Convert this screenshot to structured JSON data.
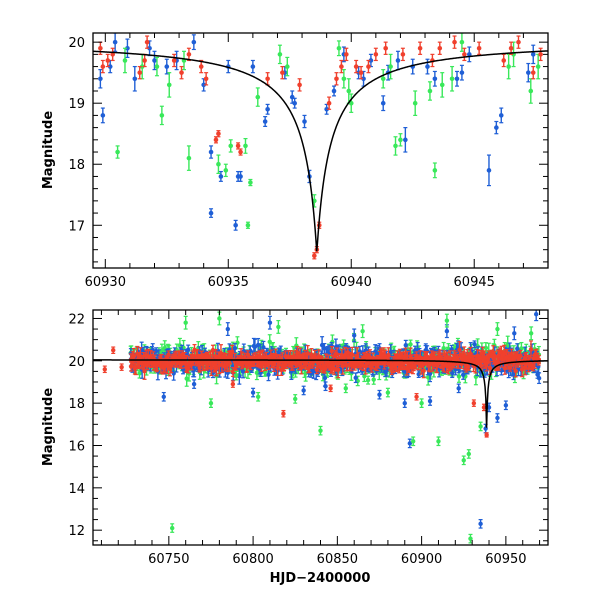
{
  "colors": {
    "blue": "#1f5fd6",
    "green": "#39e85a",
    "red": "#f0402d",
    "model": "#000000"
  },
  "chart_data": [
    {
      "type": "scatter",
      "ylabel": "Magnitude",
      "xlabel": "",
      "xlim": [
        60929.5,
        60948
      ],
      "ylim": [
        20.15,
        16.3
      ],
      "xticks": [
        60930,
        60935,
        60940,
        60945
      ],
      "xtick_labels": [
        "60930",
        "60935",
        "60940",
        "60945"
      ],
      "yticks": [
        17,
        18,
        19,
        20
      ],
      "ytick_labels": [
        "17",
        "18",
        "19",
        "20"
      ],
      "model": {
        "name": "model curve",
        "t0": 60938.6,
        "peak": 16.55,
        "base": 20.05,
        "depth": 3.5,
        "tau": 0.55
      },
      "series": [
        {
          "name": "blue",
          "color": "blue",
          "points": [
            [
              60929.8,
              19.4,
              0.15
            ],
            [
              60929.9,
              18.8,
              0.12
            ],
            [
              60930.2,
              19.6,
              0.1
            ],
            [
              60930.4,
              20.0,
              0.15
            ],
            [
              60930.9,
              19.9,
              0.15
            ],
            [
              60931.2,
              19.4,
              0.2
            ],
            [
              60931.8,
              19.9,
              0.12
            ],
            [
              60932.0,
              19.7,
              0.15
            ],
            [
              60932.5,
              19.6,
              0.12
            ],
            [
              60932.9,
              19.7,
              0.15
            ],
            [
              60933.6,
              20.0,
              0.12
            ],
            [
              60934.0,
              19.3,
              0.1
            ],
            [
              60934.3,
              17.2,
              0.07
            ],
            [
              60934.3,
              18.2,
              0.1
            ],
            [
              60934.7,
              17.8,
              0.08
            ],
            [
              60935.0,
              19.6,
              0.1
            ],
            [
              60935.3,
              17.0,
              0.08
            ],
            [
              60935.4,
              17.8,
              0.08
            ],
            [
              60935.5,
              17.8,
              0.08
            ],
            [
              60936.0,
              19.6,
              0.1
            ],
            [
              60936.5,
              18.7,
              0.08
            ],
            [
              60936.6,
              18.9,
              0.08
            ],
            [
              60937.3,
              19.5,
              0.1
            ],
            [
              60937.6,
              19.1,
              0.1
            ],
            [
              60937.7,
              19.0,
              0.08
            ],
            [
              60938.1,
              18.7,
              0.1
            ],
            [
              60938.3,
              17.8,
              0.1
            ],
            [
              60939.0,
              18.9,
              0.08
            ],
            [
              60939.3,
              19.2,
              0.08
            ],
            [
              60939.7,
              19.8,
              0.12
            ],
            [
              60940.3,
              19.5,
              0.1
            ],
            [
              60940.5,
              19.4,
              0.12
            ],
            [
              60940.8,
              19.7,
              0.1
            ],
            [
              60941.3,
              19.0,
              0.12
            ],
            [
              60941.5,
              19.5,
              0.12
            ],
            [
              60941.9,
              19.7,
              0.15
            ],
            [
              60942.2,
              18.4,
              0.2
            ],
            [
              60942.5,
              19.6,
              0.12
            ],
            [
              60943.1,
              19.6,
              0.12
            ],
            [
              60943.4,
              19.4,
              0.12
            ],
            [
              60944.3,
              19.4,
              0.12
            ],
            [
              60944.5,
              19.5,
              0.12
            ],
            [
              60944.8,
              19.8,
              0.12
            ],
            [
              60945.6,
              17.9,
              0.25
            ],
            [
              60945.9,
              18.6,
              0.1
            ],
            [
              60946.1,
              18.8,
              0.12
            ],
            [
              60947.2,
              19.5,
              0.15
            ],
            [
              60947.4,
              19.8,
              0.15
            ]
          ]
        },
        {
          "name": "green",
          "color": "green",
          "points": [
            [
              60930.5,
              18.2,
              0.1
            ],
            [
              60930.8,
              19.7,
              0.2
            ],
            [
              60931.5,
              19.6,
              0.2
            ],
            [
              60932.1,
              19.6,
              0.15
            ],
            [
              60932.3,
              18.8,
              0.15
            ],
            [
              60932.6,
              19.3,
              0.2
            ],
            [
              60933.2,
              19.7,
              0.15
            ],
            [
              60933.4,
              18.1,
              0.2
            ],
            [
              60934.6,
              18.0,
              0.15
            ],
            [
              60934.9,
              17.9,
              0.1
            ],
            [
              60935.1,
              18.3,
              0.1
            ],
            [
              60935.7,
              18.3,
              0.12
            ],
            [
              60935.8,
              17.0,
              0.05
            ],
            [
              60935.9,
              17.7,
              0.05
            ],
            [
              60936.2,
              19.1,
              0.15
            ],
            [
              60937.1,
              19.8,
              0.15
            ],
            [
              60937.4,
              19.6,
              0.15
            ],
            [
              60938.5,
              17.4,
              0.1
            ],
            [
              60939.5,
              19.9,
              0.12
            ],
            [
              60939.7,
              19.4,
              0.15
            ],
            [
              60939.9,
              19.2,
              0.2
            ],
            [
              60940.0,
              19.0,
              0.15
            ],
            [
              60941.3,
              19.4,
              0.15
            ],
            [
              60941.6,
              19.6,
              0.2
            ],
            [
              60941.8,
              18.3,
              0.15
            ],
            [
              60942.0,
              18.4,
              0.1
            ],
            [
              60942.6,
              19.0,
              0.2
            ],
            [
              60943.2,
              19.2,
              0.15
            ],
            [
              60943.4,
              17.9,
              0.12
            ],
            [
              60943.7,
              19.3,
              0.2
            ],
            [
              60944.1,
              19.4,
              0.2
            ],
            [
              60944.5,
              20.0,
              0.15
            ],
            [
              60946.4,
              19.6,
              0.2
            ],
            [
              60946.6,
              19.8,
              0.2
            ],
            [
              60947.3,
              19.2,
              0.2
            ],
            [
              60947.6,
              19.6,
              0.2
            ]
          ]
        },
        {
          "name": "red",
          "color": "red",
          "points": [
            [
              60929.8,
              19.9,
              0.1
            ],
            [
              60929.9,
              19.6,
              0.1
            ],
            [
              60930.1,
              19.7,
              0.1
            ],
            [
              60930.3,
              19.8,
              0.1
            ],
            [
              60931.4,
              19.5,
              0.1
            ],
            [
              60931.6,
              19.7,
              0.1
            ],
            [
              60931.7,
              20.0,
              0.1
            ],
            [
              60932.8,
              19.7,
              0.1
            ],
            [
              60933.1,
              19.5,
              0.1
            ],
            [
              60933.4,
              19.8,
              0.1
            ],
            [
              60933.9,
              19.6,
              0.1
            ],
            [
              60934.1,
              19.4,
              0.1
            ],
            [
              60934.5,
              18.4,
              0.05
            ],
            [
              60934.6,
              18.5,
              0.05
            ],
            [
              60935.4,
              18.3,
              0.05
            ],
            [
              60935.5,
              18.2,
              0.05
            ],
            [
              60936.6,
              19.4,
              0.1
            ],
            [
              60937.2,
              19.5,
              0.1
            ],
            [
              60937.9,
              19.3,
              0.1
            ],
            [
              60938.5,
              16.5,
              0.05
            ],
            [
              60938.6,
              16.6,
              0.05
            ],
            [
              60938.7,
              17.0,
              0.05
            ],
            [
              60939.1,
              19.0,
              0.1
            ],
            [
              60939.4,
              19.4,
              0.1
            ],
            [
              60939.6,
              19.6,
              0.1
            ],
            [
              60939.8,
              19.8,
              0.1
            ],
            [
              60940.2,
              19.6,
              0.1
            ],
            [
              60940.4,
              19.5,
              0.1
            ],
            [
              60940.7,
              19.6,
              0.1
            ],
            [
              60941.0,
              19.8,
              0.1
            ],
            [
              60941.4,
              19.9,
              0.1
            ],
            [
              60942.1,
              19.8,
              0.1
            ],
            [
              60942.8,
              19.9,
              0.1
            ],
            [
              60943.3,
              19.7,
              0.1
            ],
            [
              60943.6,
              19.9,
              0.1
            ],
            [
              60944.2,
              20.0,
              0.1
            ],
            [
              60944.6,
              19.8,
              0.1
            ],
            [
              60945.2,
              19.9,
              0.1
            ],
            [
              60946.2,
              19.7,
              0.1
            ],
            [
              60946.5,
              19.9,
              0.1
            ],
            [
              60946.8,
              20.0,
              0.1
            ],
            [
              60947.4,
              19.5,
              0.1
            ],
            [
              60947.7,
              19.8,
              0.1
            ]
          ]
        }
      ]
    },
    {
      "type": "scatter",
      "ylabel": "Magnitude",
      "xlabel": "HJD−2400000",
      "xlim": [
        60705,
        60975
      ],
      "ylim": [
        22.4,
        11.3
      ],
      "xticks": [
        60750,
        60800,
        60850,
        60900,
        60950
      ],
      "xtick_labels": [
        "60750",
        "60800",
        "60850",
        "60900",
        "60950"
      ],
      "yticks": [
        12,
        14,
        16,
        18,
        20,
        22
      ],
      "ytick_labels": [
        "12",
        "14",
        "16",
        "18",
        "20",
        "22"
      ],
      "model": {
        "name": "model curve",
        "t0": 60938.6,
        "peak": 16.55,
        "base": 20.05,
        "depth": 3.5,
        "tau": 0.55
      },
      "bulk": {
        "x_range": [
          60727,
          60970
        ],
        "center": 20.0,
        "step": 0.55
      },
      "series": [
        {
          "name": "blue",
          "color": "blue",
          "spread": 0.85,
          "points": [
            [
              60747,
              18.3,
              0.2
            ],
            [
              60765,
              18.9,
              0.2
            ],
            [
              60785,
              21.5,
              0.3
            ],
            [
              60800,
              18.5,
              0.2
            ],
            [
              60810,
              21.8,
              0.3
            ],
            [
              60830,
              18.6,
              0.2
            ],
            [
              60843,
              18.8,
              0.2
            ],
            [
              60860,
              21.2,
              0.3
            ],
            [
              60875,
              18.4,
              0.2
            ],
            [
              60890,
              18.0,
              0.2
            ],
            [
              60893,
              16.1,
              0.2
            ],
            [
              60905,
              18.1,
              0.2
            ],
            [
              60915,
              21.4,
              0.3
            ],
            [
              60922,
              18.7,
              0.2
            ],
            [
              60935,
              12.3,
              0.2
            ],
            [
              60938,
              16.8,
              0.2
            ],
            [
              60940,
              17.8,
              0.2
            ],
            [
              60945,
              17.3,
              0.2
            ],
            [
              60950,
              17.9,
              0.2
            ],
            [
              60955,
              21.3,
              0.3
            ],
            [
              60968,
              22.2,
              0.3
            ]
          ]
        },
        {
          "name": "green",
          "color": "green",
          "spread": 0.95,
          "points": [
            [
              60752,
              12.1,
              0.2
            ],
            [
              60760,
              21.8,
              0.3
            ],
            [
              60775,
              18.0,
              0.2
            ],
            [
              60780,
              22.0,
              0.3
            ],
            [
              60790,
              19.3,
              0.2
            ],
            [
              60803,
              18.3,
              0.2
            ],
            [
              60815,
              21.6,
              0.3
            ],
            [
              60825,
              18.2,
              0.2
            ],
            [
              60840,
              16.7,
              0.2
            ],
            [
              60855,
              18.7,
              0.2
            ],
            [
              60865,
              21.4,
              0.3
            ],
            [
              60880,
              18.5,
              0.2
            ],
            [
              60895,
              16.2,
              0.2
            ],
            [
              60900,
              18.0,
              0.2
            ],
            [
              60910,
              16.2,
              0.2
            ],
            [
              60915,
              21.9,
              0.3
            ],
            [
              60925,
              15.3,
              0.2
            ],
            [
              60928,
              15.6,
              0.2
            ],
            [
              60929,
              11.6,
              0.2
            ],
            [
              60935,
              16.9,
              0.2
            ],
            [
              60945,
              21.5,
              0.3
            ],
            [
              60965,
              21.3,
              0.3
            ]
          ]
        },
        {
          "name": "red",
          "color": "red",
          "spread": 0.5,
          "points": [
            [
              60712,
              19.6,
              0.15
            ],
            [
              60717,
              20.5,
              0.15
            ],
            [
              60722,
              19.7,
              0.15
            ],
            [
              60788,
              18.9,
              0.15
            ],
            [
              60818,
              17.5,
              0.15
            ],
            [
              60846,
              18.7,
              0.15
            ],
            [
              60897,
              18.3,
              0.15
            ],
            [
              60931,
              18.0,
              0.15
            ],
            [
              60937,
              17.8,
              0.15
            ],
            [
              60938.6,
              16.5,
              0.1
            ]
          ]
        }
      ]
    }
  ]
}
